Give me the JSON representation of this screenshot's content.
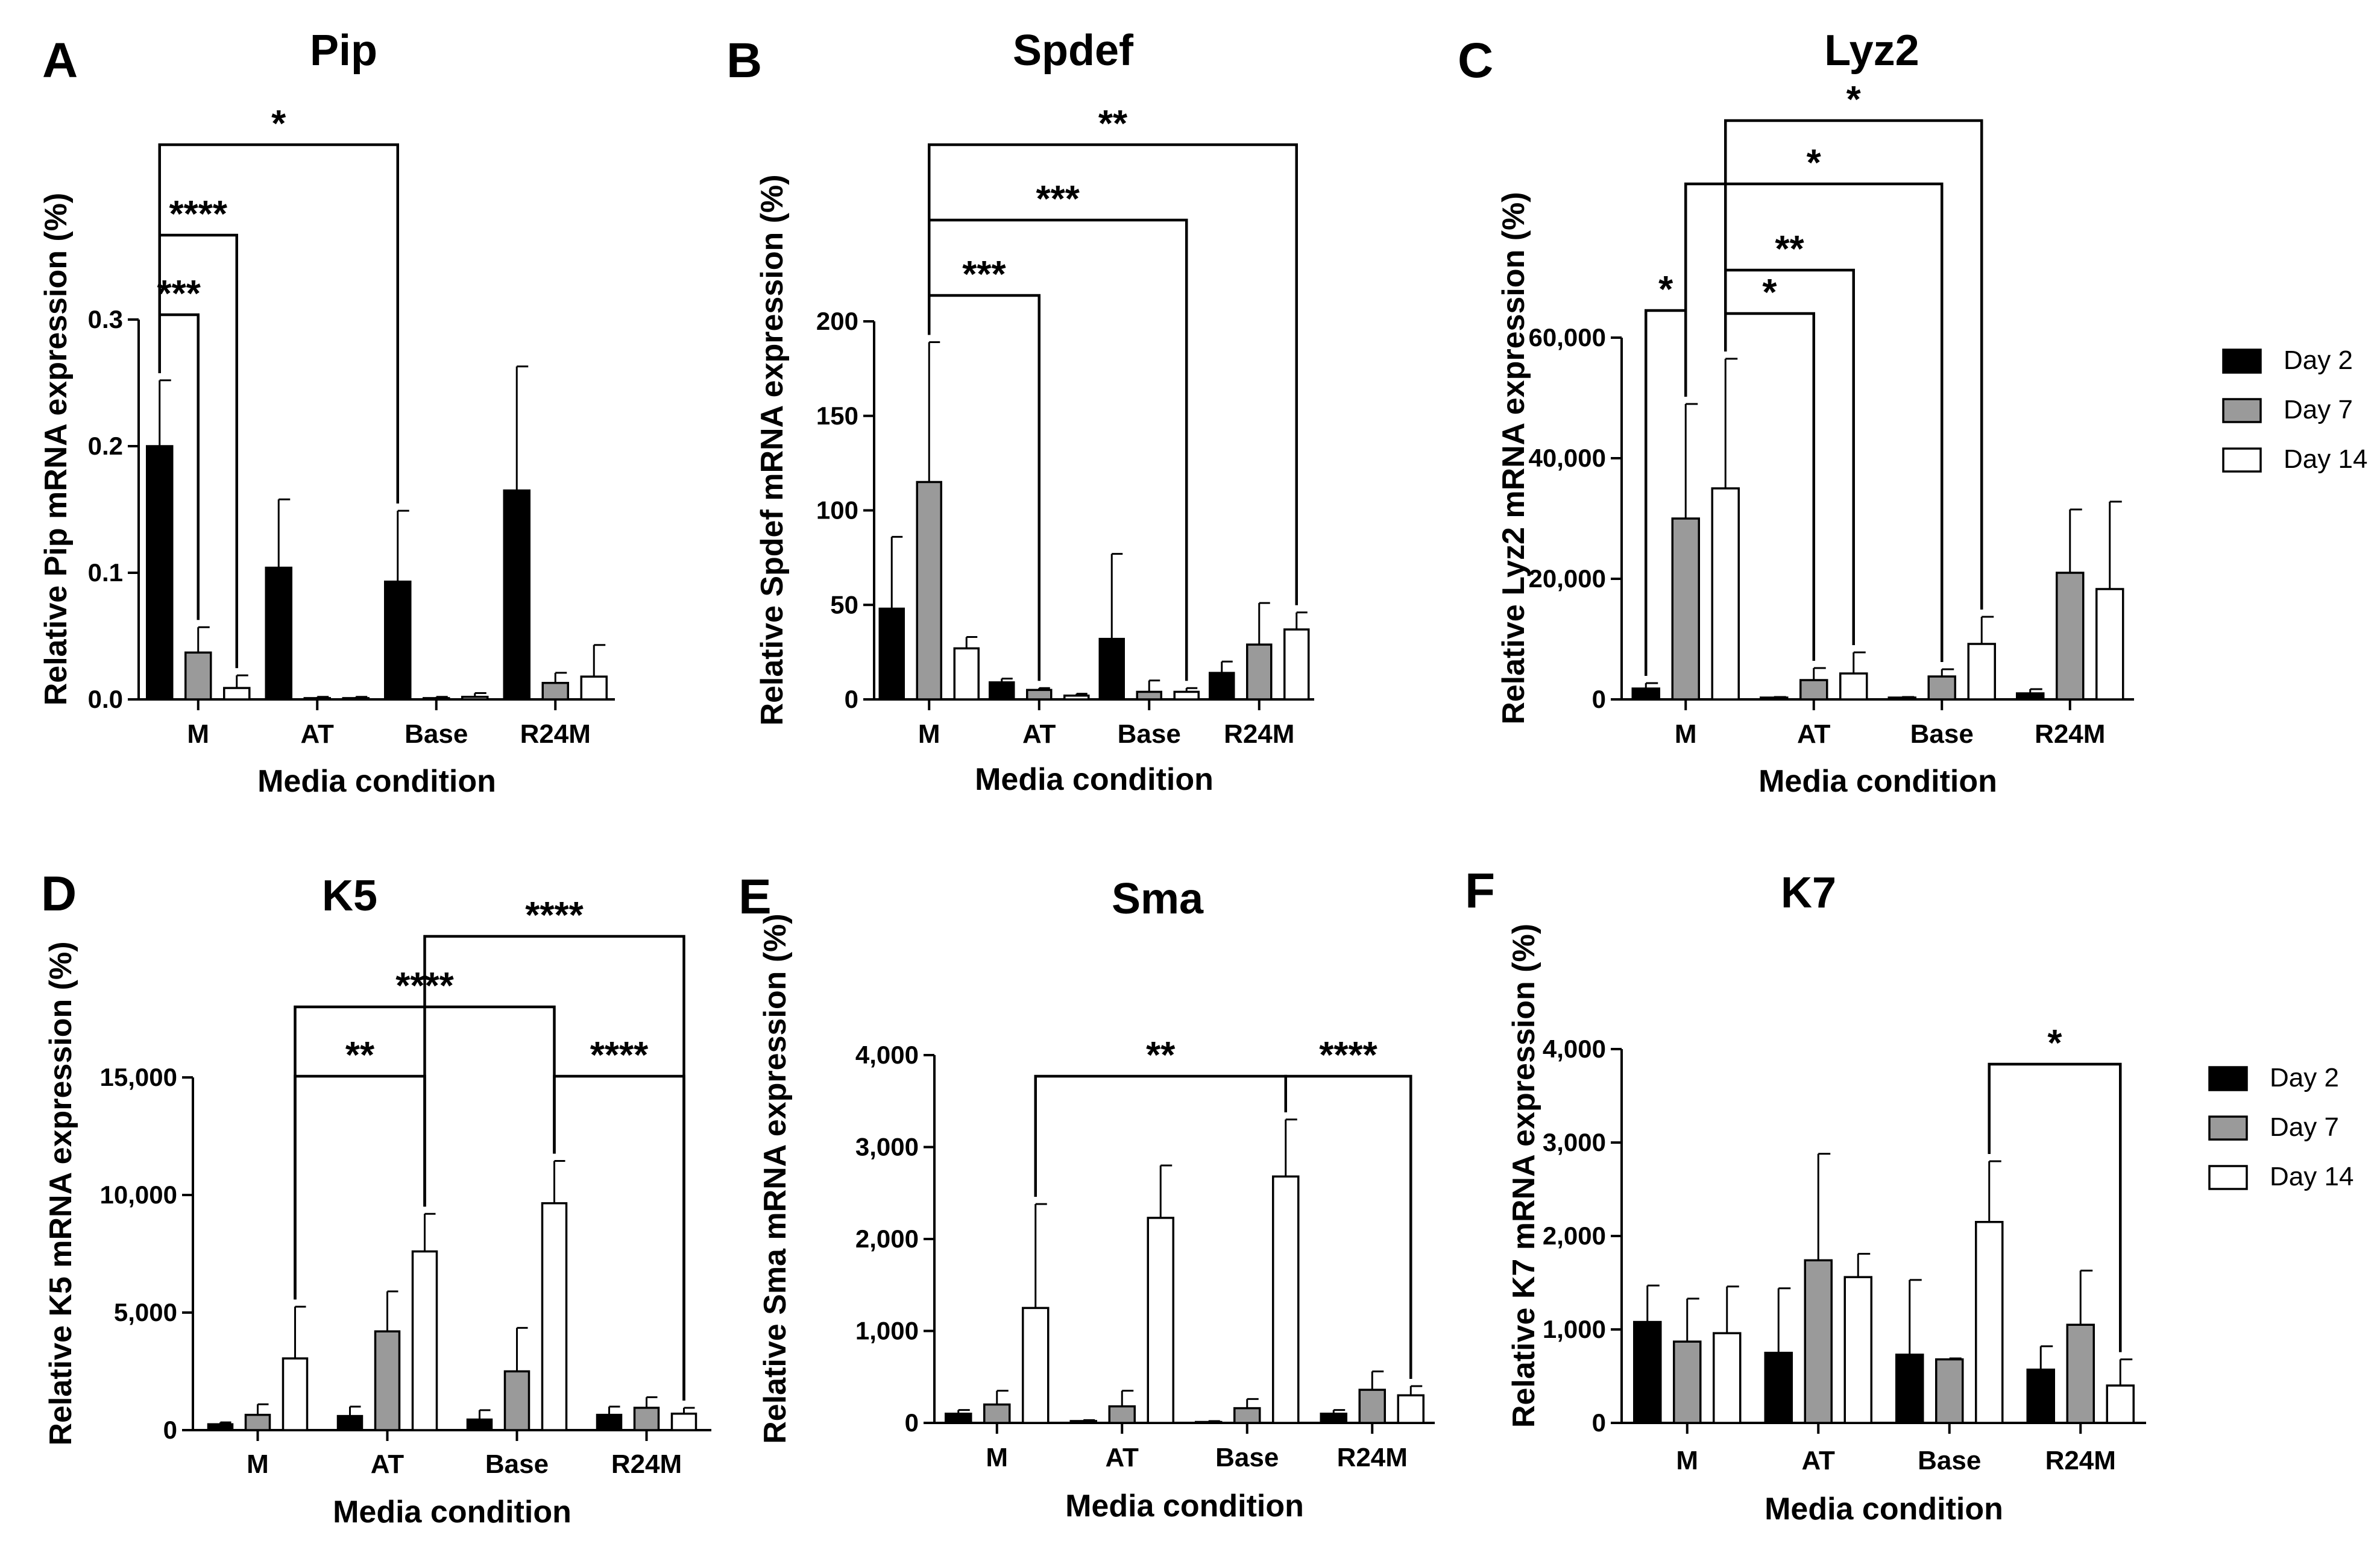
{
  "colors": {
    "day2": "#000000",
    "day7": "#9a9a9a",
    "day14": "#ffffff"
  },
  "legends": [
    {
      "entries": [
        "Day 2",
        "Day 7",
        "Day 14"
      ]
    },
    {
      "entries": [
        "Day 2",
        "Day 7",
        "Day 14"
      ]
    }
  ],
  "chart_data": [
    {
      "type": "bar",
      "letter": "A",
      "title": "Pip",
      "xlabel": "Media condition",
      "ylabel": "Relative Pip mRNA expression (%)",
      "categories": [
        "M",
        "AT",
        "Base",
        "R24M"
      ],
      "ylim": [
        0,
        0.3
      ],
      "yticks": [
        0,
        0.1,
        0.2,
        0.3
      ],
      "ytick_labels": [
        "0.0",
        "0.1",
        "0.2",
        "0.3"
      ],
      "series": [
        {
          "name": "Day 2",
          "values": [
            0.2,
            0.104,
            0.093,
            0.165
          ],
          "errors": [
            0.052,
            0.054,
            0.056,
            0.098
          ]
        },
        {
          "name": "Day 7",
          "values": [
            0.037,
            0.001,
            0.001,
            0.013
          ],
          "errors": [
            0.02,
            0.001,
            0.001,
            0.008
          ]
        },
        {
          "name": "Day 14",
          "values": [
            0.009,
            0.001,
            0.002,
            0.018
          ],
          "errors": [
            0.01,
            0.001,
            0.003,
            0.025
          ]
        }
      ],
      "significance": [
        {
          "from": [
            0,
            0
          ],
          "to": [
            0,
            1
          ],
          "label": "***"
        },
        {
          "from": [
            0,
            0
          ],
          "to": [
            0,
            2
          ],
          "label": "****"
        },
        {
          "from": [
            0,
            0
          ],
          "to": [
            2,
            0
          ],
          "label": "*"
        }
      ]
    },
    {
      "type": "bar",
      "letter": "B",
      "title": "Spdef",
      "xlabel": "Media condition",
      "ylabel": "Relative Spdef mRNA expression (%)",
      "categories": [
        "M",
        "AT",
        "Base",
        "R24M"
      ],
      "ylim": [
        0,
        200
      ],
      "yticks": [
        0,
        50,
        100,
        150,
        200
      ],
      "ytick_labels": [
        "0",
        "50",
        "100",
        "150",
        "200"
      ],
      "series": [
        {
          "name": "Day 2",
          "values": [
            48,
            9,
            32,
            14
          ],
          "errors": [
            38,
            2,
            45,
            6
          ]
        },
        {
          "name": "Day 7",
          "values": [
            115,
            5,
            4,
            29
          ],
          "errors": [
            74,
            1,
            6,
            22
          ]
        },
        {
          "name": "Day 14",
          "values": [
            27,
            2,
            4,
            37
          ],
          "errors": [
            6,
            1,
            2,
            9
          ]
        }
      ],
      "significance": [
        {
          "from": [
            0,
            1
          ],
          "to": [
            1,
            1
          ],
          "label": "***"
        },
        {
          "from": [
            0,
            1
          ],
          "to": [
            2,
            2
          ],
          "label": "***"
        },
        {
          "from": [
            0,
            1
          ],
          "to": [
            3,
            2
          ],
          "label": "**"
        }
      ]
    },
    {
      "type": "bar",
      "letter": "C",
      "title": "Lyz2",
      "xlabel": "Media condition",
      "ylabel": "Relative Lyz2 mRNA expression (%)",
      "categories": [
        "M",
        "AT",
        "Base",
        "R24M"
      ],
      "ylim": [
        0,
        60000
      ],
      "yticks": [
        0,
        20000,
        40000,
        60000
      ],
      "ytick_labels": [
        "0",
        "20,000",
        "40,000",
        "60,000"
      ],
      "series": [
        {
          "name": "Day 2",
          "values": [
            1800,
            300,
            300,
            1000
          ],
          "errors": [
            900,
            100,
            100,
            700
          ]
        },
        {
          "name": "Day 7",
          "values": [
            30000,
            3200,
            3800,
            21000
          ],
          "errors": [
            19000,
            2000,
            1200,
            10500
          ]
        },
        {
          "name": "Day 14",
          "values": [
            35000,
            4300,
            9200,
            18300
          ],
          "errors": [
            21500,
            3500,
            4500,
            14500
          ]
        }
      ],
      "significance": [
        {
          "from": [
            0,
            0
          ],
          "to": [
            0,
            1
          ],
          "label": "*"
        },
        {
          "from": [
            0,
            2
          ],
          "to": [
            1,
            1
          ],
          "label": "*"
        },
        {
          "from": [
            0,
            2
          ],
          "to": [
            1,
            2
          ],
          "label": "**"
        },
        {
          "from": [
            0,
            1
          ],
          "to": [
            2,
            1
          ],
          "label": "*"
        },
        {
          "from": [
            0,
            2
          ],
          "to": [
            2,
            2
          ],
          "label": "*"
        }
      ]
    },
    {
      "type": "bar",
      "letter": "D",
      "title": "K5",
      "xlabel": "Media condition",
      "ylabel": "Relative K5 mRNA expression (%)",
      "categories": [
        "M",
        "AT",
        "Base",
        "R24M"
      ],
      "ylim": [
        0,
        15000
      ],
      "yticks": [
        0,
        5000,
        10000,
        15000
      ],
      "ytick_labels": [
        "0",
        "5,000",
        "10,000",
        "15,000"
      ],
      "series": [
        {
          "name": "Day 2",
          "values": [
            250,
            600,
            450,
            650
          ],
          "errors": [
            80,
            400,
            400,
            350
          ]
        },
        {
          "name": "Day 7",
          "values": [
            650,
            4200,
            2500,
            950
          ],
          "errors": [
            450,
            1700,
            1850,
            450
          ]
        },
        {
          "name": "Day 14",
          "values": [
            3050,
            7600,
            9650,
            700
          ],
          "errors": [
            2200,
            1600,
            1800,
            250
          ]
        }
      ],
      "significance": [
        {
          "from": [
            0,
            2
          ],
          "to": [
            1,
            2
          ],
          "label": "**"
        },
        {
          "from": [
            0,
            2
          ],
          "to": [
            2,
            2
          ],
          "label": "****"
        },
        {
          "from": [
            2,
            2
          ],
          "to": [
            3,
            2
          ],
          "label": "****"
        },
        {
          "from": [
            1,
            2
          ],
          "to": [
            3,
            2
          ],
          "label": "****"
        }
      ]
    },
    {
      "type": "bar",
      "letter": "E",
      "title": "Sma",
      "xlabel": "Media condition",
      "ylabel": "Relative Sma mRNA expression (%)",
      "categories": [
        "M",
        "AT",
        "Base",
        "R24M"
      ],
      "ylim": [
        0,
        4000
      ],
      "yticks": [
        0,
        1000,
        2000,
        3000,
        4000
      ],
      "ytick_labels": [
        "0",
        "1,000",
        "2,000",
        "3,000",
        "4,000"
      ],
      "series": [
        {
          "name": "Day 2",
          "values": [
            100,
            20,
            10,
            100
          ],
          "errors": [
            40,
            10,
            10,
            40
          ]
        },
        {
          "name": "Day 7",
          "values": [
            200,
            180,
            160,
            360
          ],
          "errors": [
            150,
            170,
            100,
            200
          ]
        },
        {
          "name": "Day 14",
          "values": [
            1250,
            2230,
            2680,
            300
          ],
          "errors": [
            1130,
            570,
            620,
            100
          ]
        }
      ],
      "significance": [
        {
          "from": [
            0,
            2
          ],
          "to": [
            2,
            2
          ],
          "label": "**"
        },
        {
          "from": [
            2,
            2
          ],
          "to": [
            3,
            2
          ],
          "label": "****"
        }
      ]
    },
    {
      "type": "bar",
      "letter": "F",
      "title": "K7",
      "xlabel": "Media condition",
      "ylabel": "Relative K7 mRNA expression (%)",
      "categories": [
        "M",
        "AT",
        "Base",
        "R24M"
      ],
      "ylim": [
        0,
        4000
      ],
      "yticks": [
        0,
        1000,
        2000,
        3000,
        4000
      ],
      "ytick_labels": [
        "0",
        "1,000",
        "2,000",
        "3,000",
        "4,000"
      ],
      "series": [
        {
          "name": "Day 2",
          "values": [
            1080,
            750,
            730,
            570
          ],
          "errors": [
            390,
            690,
            800,
            250
          ]
        },
        {
          "name": "Day 7",
          "values": [
            870,
            1740,
            680,
            1050
          ],
          "errors": [
            460,
            1140,
            10,
            580
          ]
        },
        {
          "name": "Day 14",
          "values": [
            960,
            1560,
            2150,
            400
          ],
          "errors": [
            500,
            250,
            650,
            280
          ]
        }
      ],
      "significance": [
        {
          "from": [
            2,
            2
          ],
          "to": [
            3,
            2
          ],
          "label": "*"
        }
      ]
    }
  ]
}
